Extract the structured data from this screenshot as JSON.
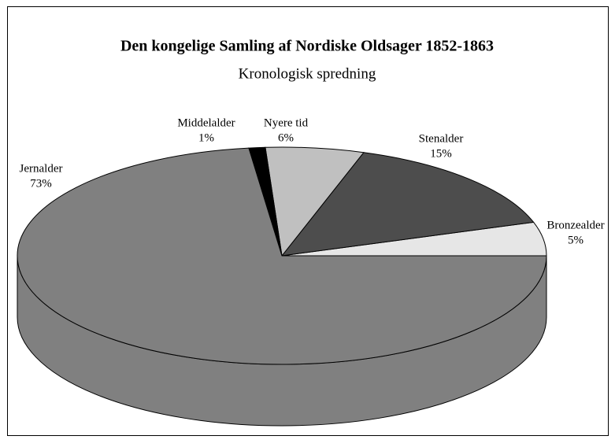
{
  "chart_data": {
    "type": "pie",
    "title": "Den kongelige Samling af Nordiske Oldsager 1852-1863",
    "subtitle": "Kronologisk spredning",
    "categories": [
      "Bronzealder",
      "Stenalder",
      "Nyere tid",
      "Middelalder",
      "Jernalder"
    ],
    "values": [
      5,
      15,
      6,
      1,
      73
    ],
    "value_labels": [
      "5%",
      "15%",
      "6%",
      "1%",
      "73%"
    ],
    "colors": [
      "#e6e6e6",
      "#4d4d4d",
      "#c0c0c0",
      "#000000",
      "#808080"
    ]
  }
}
